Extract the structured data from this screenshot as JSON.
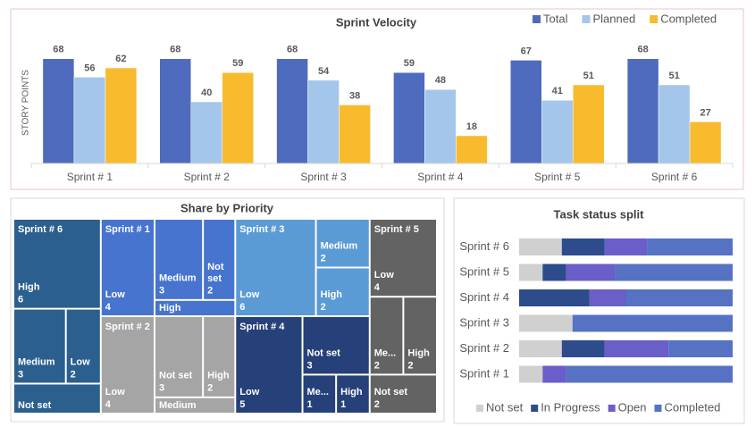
{
  "chart_data": [
    {
      "type": "bar",
      "title": "Sprint Velocity",
      "y_label": "STORY POINTS",
      "categories": [
        "Sprint # 1",
        "Sprint # 2",
        "Sprint # 3",
        "Sprint # 4",
        "Sprint # 5",
        "Sprint # 6"
      ],
      "series": [
        {
          "name": "Total",
          "color": "#4f6bbd",
          "values": [
            68,
            68,
            68,
            59,
            67,
            68
          ]
        },
        {
          "name": "Planned",
          "color": "#a4c6ea",
          "values": [
            56,
            40,
            54,
            48,
            41,
            51
          ]
        },
        {
          "name": "Completed",
          "color": "#f8bb2d",
          "values": [
            62,
            59,
            38,
            18,
            51,
            27
          ]
        }
      ],
      "ylim": [
        0,
        80
      ],
      "legend": "top-right"
    },
    {
      "type": "treemap",
      "title": "Share by Priority",
      "groups": [
        {
          "name": "Sprint # 6",
          "color": "#2a5f8e",
          "labels": [
            "High",
            "Medium",
            "Low",
            "Not set"
          ],
          "values": [
            6,
            3,
            2,
            2
          ],
          "value_labels": [
            "6",
            "3",
            "2",
            null
          ]
        },
        {
          "name": "Sprint # 1",
          "color": "#4774ce",
          "labels": [
            "Low",
            "Medium",
            "Not set",
            "High"
          ],
          "values": [
            4,
            3,
            2,
            1
          ],
          "value_labels": [
            "4",
            "3",
            "2",
            null
          ]
        },
        {
          "name": "Sprint # 2",
          "color": "#a5a5a5",
          "labels": [
            "Low",
            "Not set",
            "High",
            "Medium"
          ],
          "values": [
            4,
            3,
            2,
            1
          ],
          "value_labels": [
            "4",
            "3",
            "2",
            null
          ]
        },
        {
          "name": "Sprint # 3",
          "color": "#5b9bd5",
          "labels": [
            "Low",
            "Medium",
            "High"
          ],
          "values": [
            6,
            2,
            2
          ],
          "value_labels": [
            "6",
            "2",
            "2"
          ]
        },
        {
          "name": "Sprint # 4",
          "color": "#264079",
          "labels": [
            "Low",
            "Not set",
            "Me...",
            "High"
          ],
          "values": [
            5,
            3,
            1,
            1
          ],
          "value_labels": [
            "5",
            "3",
            "1",
            "1"
          ]
        },
        {
          "name": "Sprint # 5",
          "color": "#636363",
          "labels": [
            "Low",
            "Me...",
            "High",
            "Not set"
          ],
          "values": [
            4,
            2,
            2,
            2
          ],
          "value_labels": [
            "4",
            "2",
            "2",
            "2"
          ]
        }
      ]
    },
    {
      "type": "stacked_barh",
      "title": "Task status split",
      "categories": [
        "Sprint # 1",
        "Sprint # 2",
        "Sprint # 3",
        "Sprint # 4",
        "Sprint # 5",
        "Sprint # 6"
      ],
      "series": [
        {
          "name": "Not set",
          "color": "#d0d0d0",
          "values": [
            11,
            20,
            25,
            0,
            11,
            20
          ]
        },
        {
          "name": "In Progress",
          "color": "#2e4c8c",
          "values": [
            0,
            20,
            0,
            33,
            11,
            20
          ]
        },
        {
          "name": "Open",
          "color": "#6a5ec8",
          "values": [
            11,
            30,
            0,
            17,
            23,
            20
          ]
        },
        {
          "name": "Completed",
          "color": "#5672c3",
          "values": [
            78,
            30,
            75,
            50,
            55,
            40
          ]
        }
      ],
      "xlim": [
        0,
        100
      ],
      "legend": "bottom"
    }
  ]
}
